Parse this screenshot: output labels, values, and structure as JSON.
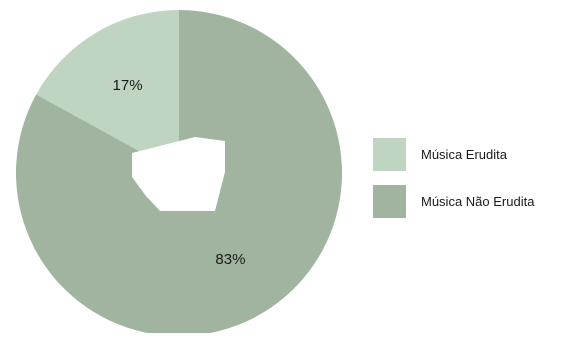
{
  "chart_data": {
    "type": "pie",
    "donut": true,
    "title": "",
    "categories": [
      "Música Erudita",
      "Música Não Erudita"
    ],
    "values": [
      17,
      83
    ],
    "labels": [
      "17%",
      "83%"
    ],
    "colors": [
      "#bfd4c1",
      "#a0b4a0"
    ],
    "legend_placement": "right"
  }
}
